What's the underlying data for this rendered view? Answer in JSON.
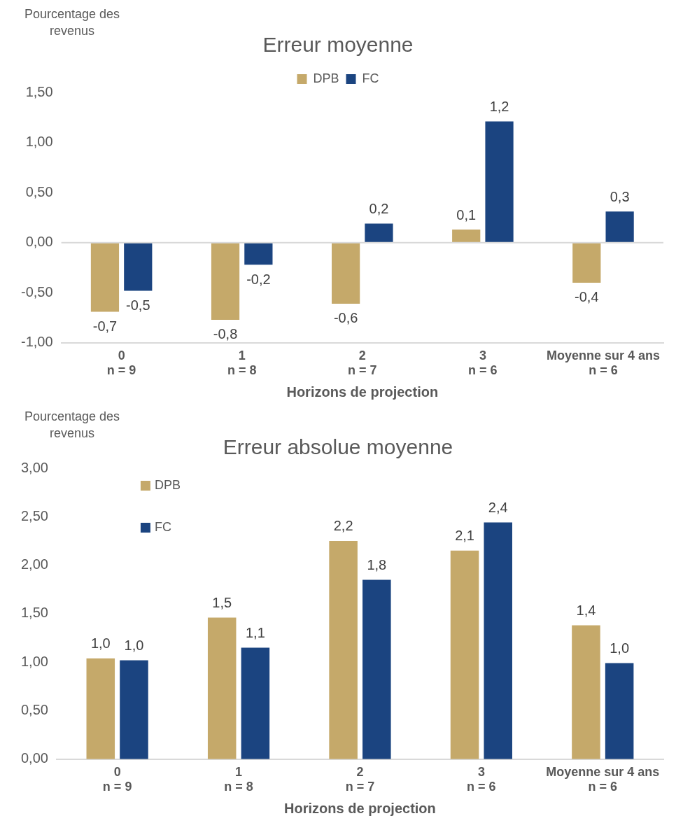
{
  "chart_data": [
    {
      "type": "bar",
      "title": "Erreur moyenne",
      "ylabel": "Pourcentage des revenus",
      "xlabel": "Horizons de projection",
      "categories": [
        "0\nn = 9",
        "1\nn = 8",
        "2\nn = 7",
        "3\nn = 6",
        "Moyenne sur 4 ans\nn = 6"
      ],
      "series": [
        {
          "name": "DPB",
          "color": "#c5a96a",
          "values": [
            -0.69,
            -0.77,
            -0.61,
            0.13,
            -0.4
          ],
          "value_labels": [
            "-0,7",
            "-0,8",
            "-0,6",
            "0,1",
            "-0,4"
          ]
        },
        {
          "name": "FC",
          "color": "#1b4480",
          "values": [
            -0.48,
            -0.22,
            0.19,
            1.21,
            0.31
          ],
          "value_labels": [
            "-0,5",
            "-0,2",
            "0,2",
            "1,2",
            "0,3"
          ]
        }
      ],
      "ylim": [
        -1,
        1.5
      ],
      "yticks": [
        {
          "value": -1,
          "label": "-1,00"
        },
        {
          "value": -0.5,
          "label": "-0,50"
        },
        {
          "value": 0,
          "label": "0,00"
        },
        {
          "value": 0.5,
          "label": "0,50"
        },
        {
          "value": 1,
          "label": "1,00"
        },
        {
          "value": 1.5,
          "label": "1,50"
        }
      ],
      "ref_lines": [
        {
          "axis": "y",
          "value": 0,
          "color": "#d9d9d9"
        }
      ],
      "grid": false,
      "legend": "top"
    },
    {
      "type": "bar",
      "title": "Erreur absolue moyenne",
      "ylabel": "Pourcentage des revenus",
      "xlabel": "Horizons de projection",
      "categories": [
        "0\nn = 9",
        "1\nn = 8",
        "2\nn = 7",
        "3\nn = 6",
        "Moyenne sur 4 ans\nn = 6"
      ],
      "series": [
        {
          "name": "DPB",
          "color": "#c5a96a",
          "values": [
            1.04,
            1.46,
            2.25,
            2.15,
            1.38
          ],
          "value_labels": [
            "1,0",
            "1,5",
            "2,2",
            "2,1",
            "1,4"
          ]
        },
        {
          "name": "FC",
          "color": "#1b4480",
          "values": [
            1.02,
            1.15,
            1.85,
            2.44,
            0.99
          ],
          "value_labels": [
            "1,0",
            "1,1",
            "1,8",
            "2,4",
            "1,0"
          ]
        }
      ],
      "ylim": [
        0,
        3
      ],
      "yticks": [
        {
          "value": 0,
          "label": "0,00"
        },
        {
          "value": 0.5,
          "label": "0,50"
        },
        {
          "value": 1,
          "label": "1,00"
        },
        {
          "value": 1.5,
          "label": "1,50"
        },
        {
          "value": 2,
          "label": "2,00"
        },
        {
          "value": 2.5,
          "label": "2,50"
        },
        {
          "value": 3,
          "label": "3,00"
        }
      ],
      "grid": false,
      "legend": "top left"
    }
  ]
}
